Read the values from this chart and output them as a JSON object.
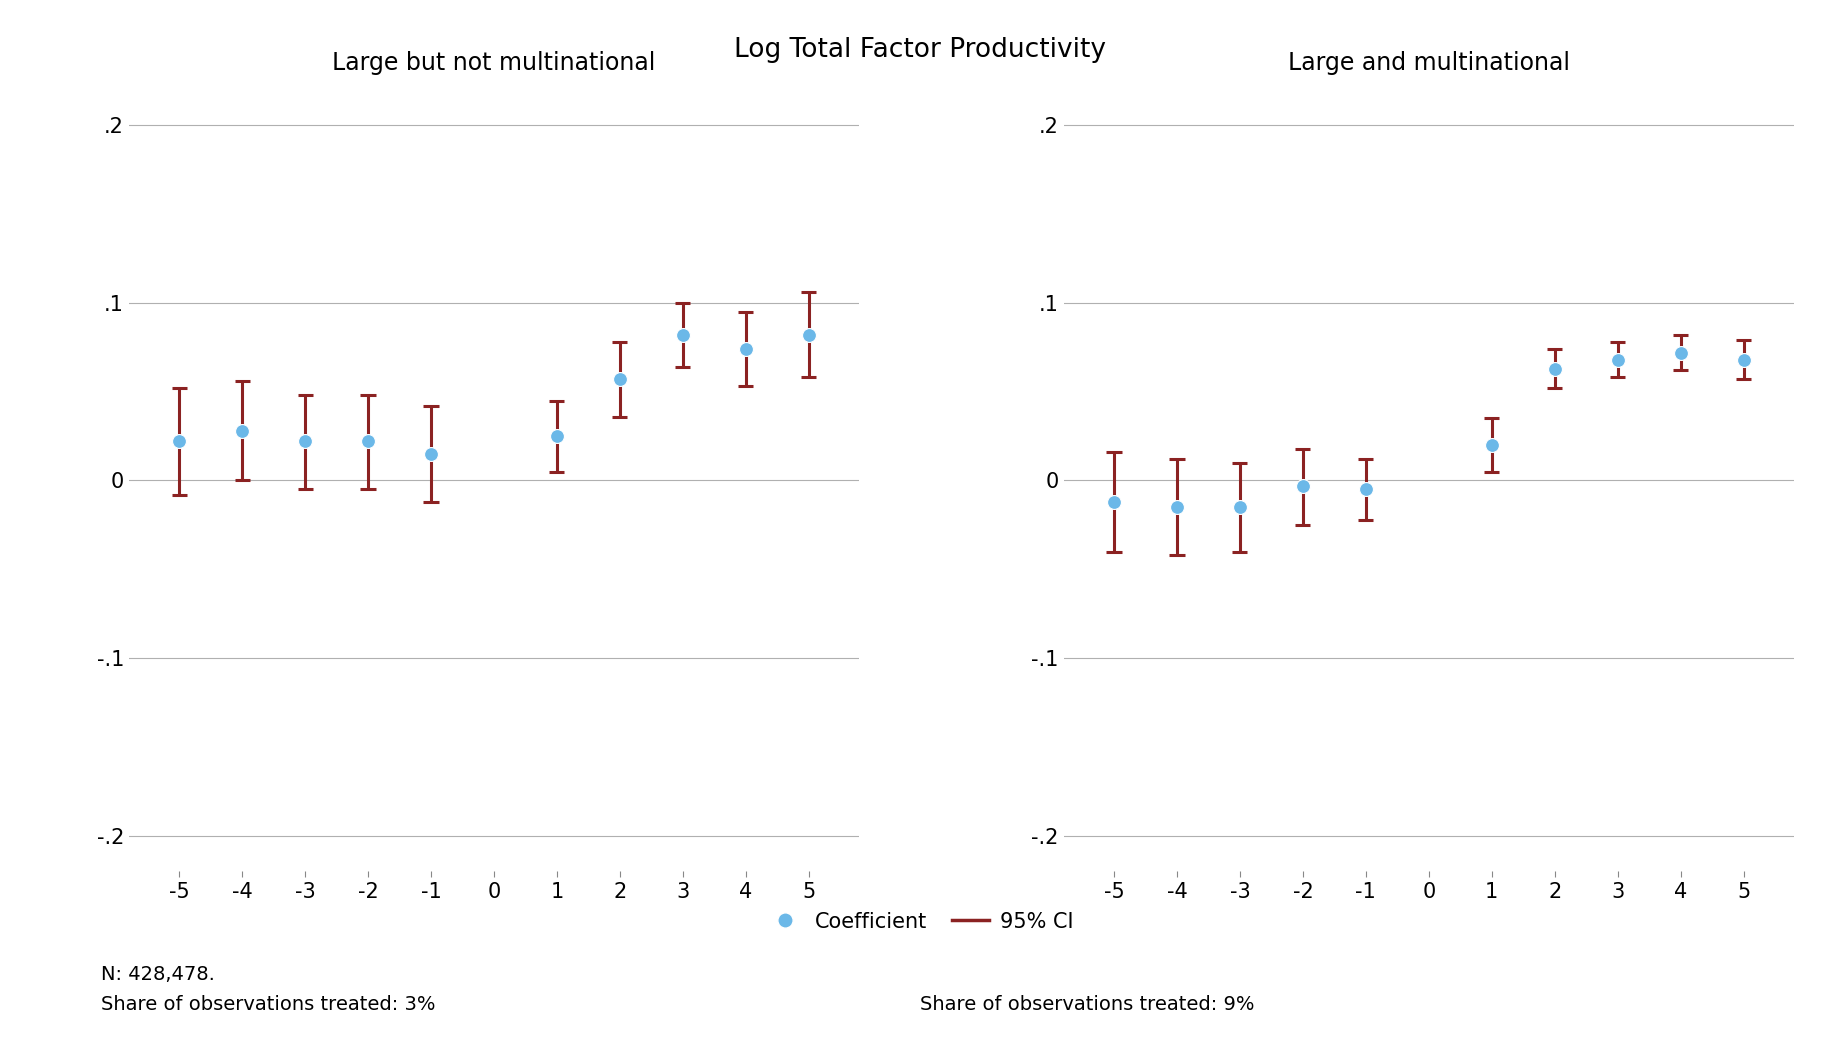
{
  "title": "Log Total Factor Productivity",
  "title_fontsize": 19,
  "panel1_title": "Large but not multinational",
  "panel2_title": "Large and multinational",
  "panel_title_fontsize": 17,
  "x_values": [
    -5,
    -4,
    -3,
    -2,
    -1,
    1,
    2,
    3,
    4,
    5
  ],
  "panel1": {
    "coef": [
      0.022,
      0.028,
      0.022,
      0.022,
      0.015,
      0.025,
      0.057,
      0.082,
      0.074,
      0.082
    ],
    "ci_lo": [
      -0.008,
      0.0,
      -0.005,
      -0.005,
      -0.012,
      0.005,
      0.036,
      0.064,
      0.053,
      0.058
    ],
    "ci_hi": [
      0.052,
      0.056,
      0.048,
      0.048,
      0.042,
      0.045,
      0.078,
      0.1,
      0.095,
      0.106
    ]
  },
  "panel2": {
    "coef": [
      -0.012,
      -0.015,
      -0.015,
      -0.003,
      -0.005,
      0.02,
      0.063,
      0.068,
      0.072,
      0.068
    ],
    "ci_lo": [
      -0.04,
      -0.042,
      -0.04,
      -0.025,
      -0.022,
      0.005,
      0.052,
      0.058,
      0.062,
      0.057
    ],
    "ci_hi": [
      0.016,
      0.012,
      0.01,
      0.018,
      0.012,
      0.035,
      0.074,
      0.078,
      0.082,
      0.079
    ]
  },
  "ylim": [
    -0.22,
    0.22
  ],
  "yticks": [
    -0.2,
    -0.1,
    0.0,
    0.1,
    0.2
  ],
  "yticklabels": [
    "-.2",
    "-.1",
    "0",
    ".1",
    ".2"
  ],
  "xticks": [
    -5,
    -4,
    -3,
    -2,
    -1,
    0,
    1,
    2,
    3,
    4,
    5
  ],
  "dot_color": "#6bb8e8",
  "ci_color": "#8b2222",
  "dot_size": 100,
  "dot_zorder": 5,
  "ci_linewidth": 2.2,
  "grid_color": "#b0b0b0",
  "bg_color": "#ffffff",
  "footnote1": "N: 428,478.",
  "footnote2_left": "Share of observations treated: 3%",
  "footnote2_right": "Share of observations treated: 9%",
  "legend_label_coef": "Coefficient",
  "legend_label_ci": "95% CI",
  "fontsize_ticks": 15,
  "fontsize_footnote": 14
}
